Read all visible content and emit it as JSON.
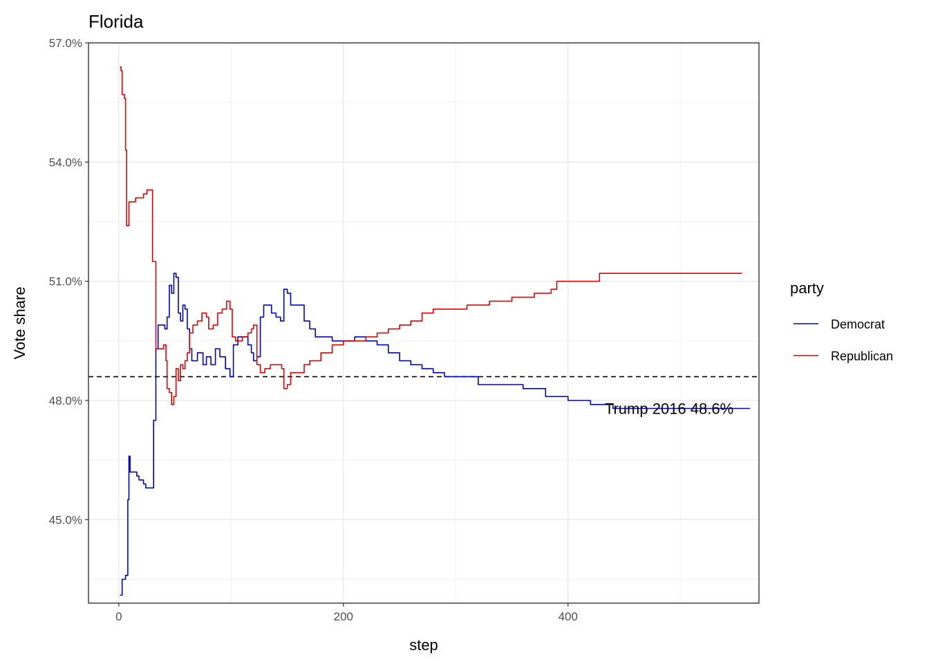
{
  "chart_data": {
    "type": "line",
    "title": "Florida",
    "xlabel": "step",
    "ylabel": "Vote share",
    "xlim": [
      -27,
      570
    ],
    "ylim": [
      42.9,
      57.0
    ],
    "x_ticks": [
      0,
      200,
      400
    ],
    "x_tick_labels": [
      "0",
      "200",
      "400"
    ],
    "y_ticks": [
      45.0,
      48.0,
      51.0,
      54.0,
      57.0
    ],
    "y_tick_labels": [
      "45.0%",
      "48.0%",
      "51.0%",
      "54.0%",
      "57.0%"
    ],
    "grid": true,
    "legend": {
      "title": "party",
      "placement": "right",
      "entries": [
        "Democrat",
        "Republican"
      ]
    },
    "reference_line": {
      "y": 48.6,
      "style": "dashed",
      "color": "#000000"
    },
    "annotation": {
      "text": "Trump 2016 48.6%",
      "x": 490,
      "y": 47.8
    },
    "series": [
      {
        "name": "Democrat",
        "color": "#0000cc",
        "points": [
          [
            1,
            43.1
          ],
          [
            3,
            43.5
          ],
          [
            6,
            43.6
          ],
          [
            8,
            45.5
          ],
          [
            9,
            46.6
          ],
          [
            10,
            46.2
          ],
          [
            13,
            46.2
          ],
          [
            16,
            46.1
          ],
          [
            18,
            46.0
          ],
          [
            20,
            46.0
          ],
          [
            22,
            45.9
          ],
          [
            24,
            45.8
          ],
          [
            29,
            45.8
          ],
          [
            31,
            47.5
          ],
          [
            33,
            49.3
          ],
          [
            35,
            49.9
          ],
          [
            38,
            49.9
          ],
          [
            41,
            49.8
          ],
          [
            43,
            50.1
          ],
          [
            45,
            50.9
          ],
          [
            47,
            50.7
          ],
          [
            49,
            51.2
          ],
          [
            51,
            51.1
          ],
          [
            53,
            50.2
          ],
          [
            55,
            50.0
          ],
          [
            57,
            50.4
          ],
          [
            59,
            50.3
          ],
          [
            61,
            49.8
          ],
          [
            63,
            49.3
          ],
          [
            65,
            49.0
          ],
          [
            70,
            49.2
          ],
          [
            75,
            48.9
          ],
          [
            78,
            49.1
          ],
          [
            82,
            48.9
          ],
          [
            86,
            49.3
          ],
          [
            90,
            49.1
          ],
          [
            95,
            48.8
          ],
          [
            99,
            48.6
          ],
          [
            102,
            49.4
          ],
          [
            106,
            49.6
          ],
          [
            110,
            49.6
          ],
          [
            115,
            49.4
          ],
          [
            118,
            49.2
          ],
          [
            120,
            49.0
          ],
          [
            123,
            49.1
          ],
          [
            126,
            50.1
          ],
          [
            129,
            50.4
          ],
          [
            132,
            50.4
          ],
          [
            136,
            50.2
          ],
          [
            140,
            50.1
          ],
          [
            144,
            50.0
          ],
          [
            147,
            50.8
          ],
          [
            150,
            50.7
          ],
          [
            153,
            50.4
          ],
          [
            158,
            50.4
          ],
          [
            165,
            50.0
          ],
          [
            170,
            49.8
          ],
          [
            175,
            49.6
          ],
          [
            180,
            49.6
          ],
          [
            190,
            49.5
          ],
          [
            200,
            49.5
          ],
          [
            210,
            49.6
          ],
          [
            220,
            49.5
          ],
          [
            230,
            49.4
          ],
          [
            240,
            49.2
          ],
          [
            250,
            49.0
          ],
          [
            260,
            48.9
          ],
          [
            270,
            48.8
          ],
          [
            280,
            48.7
          ],
          [
            290,
            48.6
          ],
          [
            300,
            48.6
          ],
          [
            310,
            48.6
          ],
          [
            320,
            48.4
          ],
          [
            340,
            48.4
          ],
          [
            360,
            48.3
          ],
          [
            380,
            48.1
          ],
          [
            400,
            48.0
          ],
          [
            420,
            47.9
          ],
          [
            440,
            47.8
          ],
          [
            460,
            47.8
          ],
          [
            480,
            47.8
          ],
          [
            500,
            47.8
          ],
          [
            520,
            47.8
          ],
          [
            540,
            47.8
          ],
          [
            562,
            47.8
          ]
        ]
      },
      {
        "name": "Republican",
        "color": "#e00000",
        "points": [
          [
            1,
            56.4
          ],
          [
            2,
            56.3
          ],
          [
            3,
            55.7
          ],
          [
            5,
            55.6
          ],
          [
            6,
            54.3
          ],
          [
            7,
            52.4
          ],
          [
            9,
            53.0
          ],
          [
            12,
            53.0
          ],
          [
            15,
            53.1
          ],
          [
            19,
            53.1
          ],
          [
            22,
            53.2
          ],
          [
            25,
            53.3
          ],
          [
            28,
            53.3
          ],
          [
            30,
            51.5
          ],
          [
            33,
            49.3
          ],
          [
            37,
            49.3
          ],
          [
            40,
            49.4
          ],
          [
            42,
            49.0
          ],
          [
            43,
            48.3
          ],
          [
            45,
            48.2
          ],
          [
            47,
            47.9
          ],
          [
            49,
            48.1
          ],
          [
            51,
            48.8
          ],
          [
            53,
            48.5
          ],
          [
            55,
            48.9
          ],
          [
            57,
            48.8
          ],
          [
            59,
            49.0
          ],
          [
            61,
            49.2
          ],
          [
            63,
            49.7
          ],
          [
            66,
            49.9
          ],
          [
            70,
            50.0
          ],
          [
            74,
            50.2
          ],
          [
            78,
            50.1
          ],
          [
            80,
            49.8
          ],
          [
            84,
            49.9
          ],
          [
            88,
            50.2
          ],
          [
            92,
            50.3
          ],
          [
            96,
            50.5
          ],
          [
            99,
            50.3
          ],
          [
            101,
            49.6
          ],
          [
            104,
            49.5
          ],
          [
            110,
            49.6
          ],
          [
            115,
            49.7
          ],
          [
            118,
            49.8
          ],
          [
            120,
            49.9
          ],
          [
            122,
            49.9
          ],
          [
            123,
            48.9
          ],
          [
            126,
            48.7
          ],
          [
            130,
            48.8
          ],
          [
            135,
            48.9
          ],
          [
            140,
            48.9
          ],
          [
            145,
            48.8
          ],
          [
            147,
            48.3
          ],
          [
            150,
            48.4
          ],
          [
            153,
            48.7
          ],
          [
            158,
            48.7
          ],
          [
            165,
            48.9
          ],
          [
            170,
            49.0
          ],
          [
            180,
            49.2
          ],
          [
            190,
            49.4
          ],
          [
            200,
            49.5
          ],
          [
            210,
            49.5
          ],
          [
            220,
            49.6
          ],
          [
            230,
            49.7
          ],
          [
            240,
            49.8
          ],
          [
            250,
            49.9
          ],
          [
            260,
            50.0
          ],
          [
            270,
            50.2
          ],
          [
            280,
            50.3
          ],
          [
            300,
            50.3
          ],
          [
            310,
            50.4
          ],
          [
            330,
            50.5
          ],
          [
            350,
            50.6
          ],
          [
            370,
            50.7
          ],
          [
            385,
            50.8
          ],
          [
            390,
            51.0
          ],
          [
            410,
            51.0
          ],
          [
            420,
            51.0
          ],
          [
            428,
            51.2
          ],
          [
            450,
            51.2
          ],
          [
            480,
            51.2
          ],
          [
            510,
            51.2
          ],
          [
            540,
            51.2
          ],
          [
            555,
            51.2
          ]
        ]
      }
    ]
  }
}
